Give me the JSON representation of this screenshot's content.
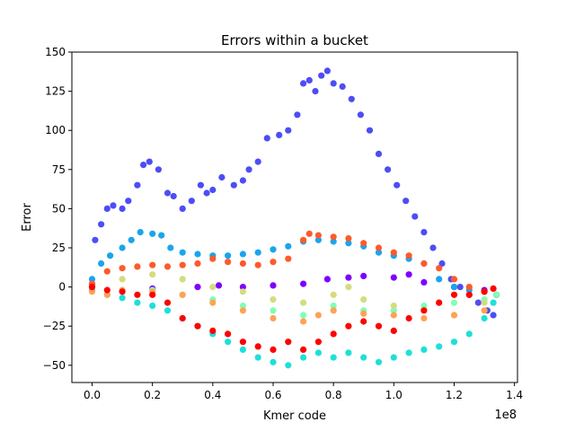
{
  "chart_data": {
    "type": "scatter",
    "title": "Errors within a bucket",
    "xlabel": "Kmer code",
    "ylabel": "Error",
    "x_offset_label": "1e8",
    "xlim": [
      -0.067,
      1.41
    ],
    "ylim": [
      -61,
      150
    ],
    "x_ticks": [
      0.0,
      0.2,
      0.4,
      0.6,
      0.8,
      1.0,
      1.2,
      1.4
    ],
    "x_tick_labels": [
      "0.0",
      "0.2",
      "0.4",
      "0.6",
      "0.8",
      "1.0",
      "1.2",
      "1.4"
    ],
    "y_ticks": [
      -50,
      -25,
      0,
      25,
      50,
      75,
      100,
      125,
      150
    ],
    "y_tick_labels": [
      "−50",
      "−25",
      "0",
      "25",
      "50",
      "75",
      "100",
      "125",
      "150"
    ],
    "grid": false,
    "legend": "none",
    "series": [
      {
        "color": "#8000ff",
        "points": [
          [
            0.0,
            0
          ],
          [
            0.2,
            -1
          ],
          [
            0.35,
            0
          ],
          [
            0.42,
            1
          ],
          [
            0.5,
            0
          ],
          [
            0.6,
            1
          ],
          [
            0.7,
            2
          ],
          [
            0.78,
            5
          ],
          [
            0.85,
            6
          ],
          [
            0.9,
            7
          ],
          [
            1.0,
            6
          ],
          [
            1.05,
            8
          ],
          [
            1.1,
            3
          ],
          [
            1.2,
            0
          ],
          [
            1.3,
            -2
          ],
          [
            1.34,
            -5
          ]
        ]
      },
      {
        "color": "#4d4df5",
        "points": [
          [
            0.0,
            2
          ],
          [
            0.01,
            30
          ],
          [
            0.03,
            40
          ],
          [
            0.05,
            50
          ],
          [
            0.07,
            52
          ],
          [
            0.1,
            50
          ],
          [
            0.12,
            55
          ],
          [
            0.15,
            65
          ],
          [
            0.17,
            78
          ],
          [
            0.19,
            80
          ],
          [
            0.22,
            75
          ],
          [
            0.25,
            60
          ],
          [
            0.27,
            58
          ],
          [
            0.3,
            50
          ],
          [
            0.33,
            55
          ],
          [
            0.36,
            65
          ],
          [
            0.38,
            60
          ],
          [
            0.4,
            62
          ],
          [
            0.43,
            70
          ],
          [
            0.47,
            65
          ],
          [
            0.5,
            68
          ],
          [
            0.52,
            75
          ],
          [
            0.55,
            80
          ],
          [
            0.58,
            95
          ],
          [
            0.62,
            97
          ],
          [
            0.65,
            100
          ],
          [
            0.68,
            110
          ],
          [
            0.7,
            130
          ],
          [
            0.72,
            132
          ],
          [
            0.74,
            125
          ],
          [
            0.76,
            135
          ],
          [
            0.78,
            138
          ],
          [
            0.8,
            130
          ],
          [
            0.83,
            128
          ],
          [
            0.86,
            120
          ],
          [
            0.89,
            110
          ],
          [
            0.92,
            100
          ],
          [
            0.95,
            85
          ],
          [
            0.98,
            75
          ],
          [
            1.01,
            65
          ],
          [
            1.04,
            55
          ],
          [
            1.07,
            45
          ],
          [
            1.1,
            35
          ],
          [
            1.13,
            25
          ],
          [
            1.16,
            15
          ],
          [
            1.19,
            5
          ],
          [
            1.22,
            0
          ],
          [
            1.25,
            -5
          ],
          [
            1.28,
            -10
          ],
          [
            1.31,
            -15
          ],
          [
            1.33,
            -18
          ],
          [
            1.34,
            -5
          ]
        ]
      },
      {
        "color": "#1aa5ec",
        "points": [
          [
            0.0,
            5
          ],
          [
            0.03,
            15
          ],
          [
            0.06,
            20
          ],
          [
            0.1,
            25
          ],
          [
            0.13,
            30
          ],
          [
            0.16,
            35
          ],
          [
            0.2,
            34
          ],
          [
            0.23,
            33
          ],
          [
            0.26,
            25
          ],
          [
            0.3,
            22
          ],
          [
            0.35,
            21
          ],
          [
            0.4,
            20
          ],
          [
            0.45,
            20
          ],
          [
            0.5,
            21
          ],
          [
            0.55,
            22
          ],
          [
            0.6,
            24
          ],
          [
            0.65,
            26
          ],
          [
            0.7,
            29
          ],
          [
            0.75,
            30
          ],
          [
            0.8,
            29
          ],
          [
            0.85,
            28
          ],
          [
            0.9,
            26
          ],
          [
            0.95,
            22
          ],
          [
            1.0,
            20
          ],
          [
            1.05,
            18
          ],
          [
            1.1,
            15
          ],
          [
            1.15,
            5
          ],
          [
            1.2,
            0
          ],
          [
            1.25,
            -2
          ],
          [
            1.3,
            -3
          ]
        ]
      },
      {
        "color": "#1ee0d8",
        "points": [
          [
            0.0,
            -2
          ],
          [
            0.05,
            -5
          ],
          [
            0.1,
            -7
          ],
          [
            0.15,
            -10
          ],
          [
            0.2,
            -12
          ],
          [
            0.25,
            -15
          ],
          [
            0.3,
            -20
          ],
          [
            0.35,
            -25
          ],
          [
            0.4,
            -30
          ],
          [
            0.45,
            -35
          ],
          [
            0.5,
            -40
          ],
          [
            0.55,
            -45
          ],
          [
            0.6,
            -48
          ],
          [
            0.65,
            -50
          ],
          [
            0.7,
            -45
          ],
          [
            0.75,
            -42
          ],
          [
            0.8,
            -45
          ],
          [
            0.85,
            -42
          ],
          [
            0.9,
            -45
          ],
          [
            0.95,
            -48
          ],
          [
            1.0,
            -45
          ],
          [
            1.05,
            -42
          ],
          [
            1.1,
            -40
          ],
          [
            1.15,
            -38
          ],
          [
            1.2,
            -35
          ],
          [
            1.25,
            -30
          ],
          [
            1.3,
            -20
          ],
          [
            1.33,
            -10
          ]
        ]
      },
      {
        "color": "#80ffb4",
        "points": [
          [
            0.0,
            0
          ],
          [
            0.1,
            -3
          ],
          [
            0.2,
            -2
          ],
          [
            0.3,
            -5
          ],
          [
            0.4,
            -8
          ],
          [
            0.5,
            -12
          ],
          [
            0.6,
            -15
          ],
          [
            0.7,
            -18
          ],
          [
            0.8,
            -12
          ],
          [
            0.9,
            -15
          ],
          [
            1.0,
            -15
          ],
          [
            1.1,
            -12
          ],
          [
            1.2,
            -10
          ],
          [
            1.3,
            -8
          ],
          [
            1.34,
            -5
          ]
        ]
      },
      {
        "color": "#d4dc7f",
        "points": [
          [
            0.0,
            0
          ],
          [
            0.1,
            5
          ],
          [
            0.2,
            8
          ],
          [
            0.3,
            5
          ],
          [
            0.4,
            0
          ],
          [
            0.5,
            -3
          ],
          [
            0.6,
            -8
          ],
          [
            0.7,
            -10
          ],
          [
            0.8,
            -5
          ],
          [
            0.85,
            0
          ],
          [
            0.9,
            -8
          ],
          [
            1.0,
            -12
          ],
          [
            1.1,
            -15
          ],
          [
            1.2,
            -18
          ],
          [
            1.3,
            -10
          ]
        ]
      },
      {
        "color": "#ffa256",
        "points": [
          [
            0.0,
            -3
          ],
          [
            0.05,
            -5
          ],
          [
            0.1,
            -2
          ],
          [
            0.2,
            -3
          ],
          [
            0.3,
            -5
          ],
          [
            0.4,
            -10
          ],
          [
            0.5,
            -15
          ],
          [
            0.6,
            -20
          ],
          [
            0.7,
            -22
          ],
          [
            0.75,
            -18
          ],
          [
            0.8,
            -15
          ],
          [
            0.9,
            -17
          ],
          [
            1.0,
            -18
          ],
          [
            1.1,
            -20
          ],
          [
            1.2,
            -18
          ],
          [
            1.3,
            -15
          ]
        ]
      },
      {
        "color": "#ff5a2b",
        "points": [
          [
            0.0,
            2
          ],
          [
            0.05,
            10
          ],
          [
            0.1,
            12
          ],
          [
            0.15,
            13
          ],
          [
            0.2,
            14
          ],
          [
            0.25,
            13
          ],
          [
            0.3,
            14
          ],
          [
            0.35,
            15
          ],
          [
            0.4,
            18
          ],
          [
            0.45,
            16
          ],
          [
            0.5,
            15
          ],
          [
            0.55,
            14
          ],
          [
            0.6,
            16
          ],
          [
            0.65,
            18
          ],
          [
            0.7,
            30
          ],
          [
            0.72,
            34
          ],
          [
            0.75,
            33
          ],
          [
            0.8,
            32
          ],
          [
            0.85,
            31
          ],
          [
            0.9,
            28
          ],
          [
            0.95,
            25
          ],
          [
            1.0,
            22
          ],
          [
            1.05,
            20
          ],
          [
            1.1,
            15
          ],
          [
            1.15,
            12
          ],
          [
            1.2,
            5
          ],
          [
            1.25,
            0
          ],
          [
            1.3,
            -3
          ]
        ]
      },
      {
        "color": "#ff0000",
        "points": [
          [
            0.0,
            0
          ],
          [
            0.05,
            -2
          ],
          [
            0.1,
            -3
          ],
          [
            0.15,
            -5
          ],
          [
            0.2,
            -5
          ],
          [
            0.25,
            -10
          ],
          [
            0.3,
            -20
          ],
          [
            0.35,
            -25
          ],
          [
            0.4,
            -28
          ],
          [
            0.45,
            -30
          ],
          [
            0.5,
            -35
          ],
          [
            0.55,
            -38
          ],
          [
            0.6,
            -40
          ],
          [
            0.65,
            -35
          ],
          [
            0.7,
            -40
          ],
          [
            0.75,
            -35
          ],
          [
            0.8,
            -30
          ],
          [
            0.85,
            -25
          ],
          [
            0.9,
            -22
          ],
          [
            0.95,
            -25
          ],
          [
            1.0,
            -28
          ],
          [
            1.05,
            -20
          ],
          [
            1.1,
            -15
          ],
          [
            1.15,
            -10
          ],
          [
            1.2,
            -5
          ],
          [
            1.25,
            -5
          ],
          [
            1.3,
            -3
          ],
          [
            1.33,
            -1
          ]
        ]
      }
    ]
  }
}
